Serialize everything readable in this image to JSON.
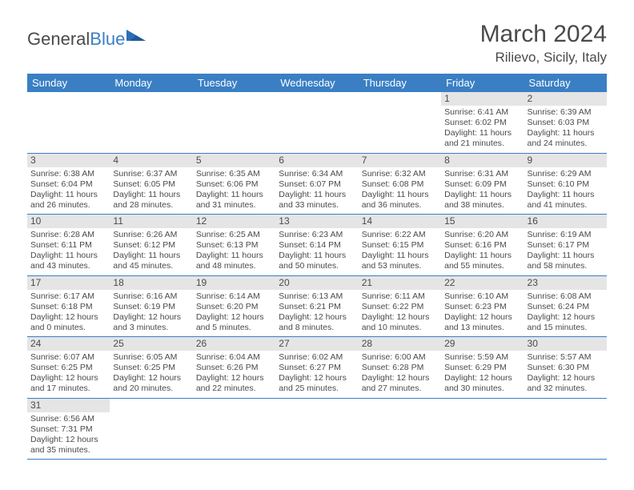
{
  "brand": {
    "part1": "General",
    "part2": "Blue"
  },
  "title": {
    "month": "March 2024",
    "location": "Rilievo, Sicily, Italy"
  },
  "colors": {
    "header_blue": "#3a7fc4",
    "daynum_bg": "#e5e5e5",
    "text": "#4a4a4a",
    "white": "#ffffff"
  },
  "weekday_headers": [
    "Sunday",
    "Monday",
    "Tuesday",
    "Wednesday",
    "Thursday",
    "Friday",
    "Saturday"
  ],
  "days": {
    "1": {
      "sunrise": "Sunrise: 6:41 AM",
      "sunset": "Sunset: 6:02 PM",
      "day_a": "Daylight: 11 hours",
      "day_b": "and 21 minutes."
    },
    "2": {
      "sunrise": "Sunrise: 6:39 AM",
      "sunset": "Sunset: 6:03 PM",
      "day_a": "Daylight: 11 hours",
      "day_b": "and 24 minutes."
    },
    "3": {
      "sunrise": "Sunrise: 6:38 AM",
      "sunset": "Sunset: 6:04 PM",
      "day_a": "Daylight: 11 hours",
      "day_b": "and 26 minutes."
    },
    "4": {
      "sunrise": "Sunrise: 6:37 AM",
      "sunset": "Sunset: 6:05 PM",
      "day_a": "Daylight: 11 hours",
      "day_b": "and 28 minutes."
    },
    "5": {
      "sunrise": "Sunrise: 6:35 AM",
      "sunset": "Sunset: 6:06 PM",
      "day_a": "Daylight: 11 hours",
      "day_b": "and 31 minutes."
    },
    "6": {
      "sunrise": "Sunrise: 6:34 AM",
      "sunset": "Sunset: 6:07 PM",
      "day_a": "Daylight: 11 hours",
      "day_b": "and 33 minutes."
    },
    "7": {
      "sunrise": "Sunrise: 6:32 AM",
      "sunset": "Sunset: 6:08 PM",
      "day_a": "Daylight: 11 hours",
      "day_b": "and 36 minutes."
    },
    "8": {
      "sunrise": "Sunrise: 6:31 AM",
      "sunset": "Sunset: 6:09 PM",
      "day_a": "Daylight: 11 hours",
      "day_b": "and 38 minutes."
    },
    "9": {
      "sunrise": "Sunrise: 6:29 AM",
      "sunset": "Sunset: 6:10 PM",
      "day_a": "Daylight: 11 hours",
      "day_b": "and 41 minutes."
    },
    "10": {
      "sunrise": "Sunrise: 6:28 AM",
      "sunset": "Sunset: 6:11 PM",
      "day_a": "Daylight: 11 hours",
      "day_b": "and 43 minutes."
    },
    "11": {
      "sunrise": "Sunrise: 6:26 AM",
      "sunset": "Sunset: 6:12 PM",
      "day_a": "Daylight: 11 hours",
      "day_b": "and 45 minutes."
    },
    "12": {
      "sunrise": "Sunrise: 6:25 AM",
      "sunset": "Sunset: 6:13 PM",
      "day_a": "Daylight: 11 hours",
      "day_b": "and 48 minutes."
    },
    "13": {
      "sunrise": "Sunrise: 6:23 AM",
      "sunset": "Sunset: 6:14 PM",
      "day_a": "Daylight: 11 hours",
      "day_b": "and 50 minutes."
    },
    "14": {
      "sunrise": "Sunrise: 6:22 AM",
      "sunset": "Sunset: 6:15 PM",
      "day_a": "Daylight: 11 hours",
      "day_b": "and 53 minutes."
    },
    "15": {
      "sunrise": "Sunrise: 6:20 AM",
      "sunset": "Sunset: 6:16 PM",
      "day_a": "Daylight: 11 hours",
      "day_b": "and 55 minutes."
    },
    "16": {
      "sunrise": "Sunrise: 6:19 AM",
      "sunset": "Sunset: 6:17 PM",
      "day_a": "Daylight: 11 hours",
      "day_b": "and 58 minutes."
    },
    "17": {
      "sunrise": "Sunrise: 6:17 AM",
      "sunset": "Sunset: 6:18 PM",
      "day_a": "Daylight: 12 hours",
      "day_b": "and 0 minutes."
    },
    "18": {
      "sunrise": "Sunrise: 6:16 AM",
      "sunset": "Sunset: 6:19 PM",
      "day_a": "Daylight: 12 hours",
      "day_b": "and 3 minutes."
    },
    "19": {
      "sunrise": "Sunrise: 6:14 AM",
      "sunset": "Sunset: 6:20 PM",
      "day_a": "Daylight: 12 hours",
      "day_b": "and 5 minutes."
    },
    "20": {
      "sunrise": "Sunrise: 6:13 AM",
      "sunset": "Sunset: 6:21 PM",
      "day_a": "Daylight: 12 hours",
      "day_b": "and 8 minutes."
    },
    "21": {
      "sunrise": "Sunrise: 6:11 AM",
      "sunset": "Sunset: 6:22 PM",
      "day_a": "Daylight: 12 hours",
      "day_b": "and 10 minutes."
    },
    "22": {
      "sunrise": "Sunrise: 6:10 AM",
      "sunset": "Sunset: 6:23 PM",
      "day_a": "Daylight: 12 hours",
      "day_b": "and 13 minutes."
    },
    "23": {
      "sunrise": "Sunrise: 6:08 AM",
      "sunset": "Sunset: 6:24 PM",
      "day_a": "Daylight: 12 hours",
      "day_b": "and 15 minutes."
    },
    "24": {
      "sunrise": "Sunrise: 6:07 AM",
      "sunset": "Sunset: 6:25 PM",
      "day_a": "Daylight: 12 hours",
      "day_b": "and 17 minutes."
    },
    "25": {
      "sunrise": "Sunrise: 6:05 AM",
      "sunset": "Sunset: 6:25 PM",
      "day_a": "Daylight: 12 hours",
      "day_b": "and 20 minutes."
    },
    "26": {
      "sunrise": "Sunrise: 6:04 AM",
      "sunset": "Sunset: 6:26 PM",
      "day_a": "Daylight: 12 hours",
      "day_b": "and 22 minutes."
    },
    "27": {
      "sunrise": "Sunrise: 6:02 AM",
      "sunset": "Sunset: 6:27 PM",
      "day_a": "Daylight: 12 hours",
      "day_b": "and 25 minutes."
    },
    "28": {
      "sunrise": "Sunrise: 6:00 AM",
      "sunset": "Sunset: 6:28 PM",
      "day_a": "Daylight: 12 hours",
      "day_b": "and 27 minutes."
    },
    "29": {
      "sunrise": "Sunrise: 5:59 AM",
      "sunset": "Sunset: 6:29 PM",
      "day_a": "Daylight: 12 hours",
      "day_b": "and 30 minutes."
    },
    "30": {
      "sunrise": "Sunrise: 5:57 AM",
      "sunset": "Sunset: 6:30 PM",
      "day_a": "Daylight: 12 hours",
      "day_b": "and 32 minutes."
    },
    "31": {
      "sunrise": "Sunrise: 6:56 AM",
      "sunset": "Sunset: 7:31 PM",
      "day_a": "Daylight: 12 hours",
      "day_b": "and 35 minutes."
    }
  },
  "grid": [
    [
      null,
      null,
      null,
      null,
      null,
      "1",
      "2"
    ],
    [
      "3",
      "4",
      "5",
      "6",
      "7",
      "8",
      "9"
    ],
    [
      "10",
      "11",
      "12",
      "13",
      "14",
      "15",
      "16"
    ],
    [
      "17",
      "18",
      "19",
      "20",
      "21",
      "22",
      "23"
    ],
    [
      "24",
      "25",
      "26",
      "27",
      "28",
      "29",
      "30"
    ],
    [
      "31",
      null,
      null,
      null,
      null,
      null,
      null
    ]
  ]
}
